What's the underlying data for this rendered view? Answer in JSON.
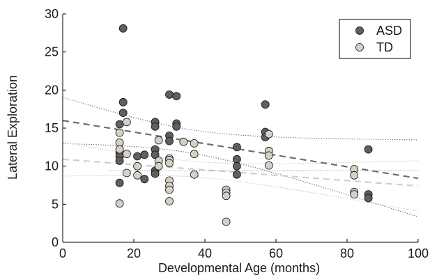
{
  "chart_data": {
    "type": "scatter",
    "xlabel": "Developmental Age (months)",
    "ylabel": "Lateral Exploration",
    "xlim": [
      0,
      100
    ],
    "ylim": [
      0,
      30
    ],
    "xticks": [
      0,
      20,
      40,
      60,
      80,
      100
    ],
    "yticks": [
      0,
      5,
      10,
      15,
      20,
      25,
      30
    ],
    "xtick_labels": [
      "0",
      "20",
      "40",
      "60",
      "80",
      "100"
    ],
    "ytick_labels": [
      "0",
      "5",
      "10",
      "15",
      "20",
      "25",
      "30"
    ],
    "grid": false,
    "legend_position": "top-right",
    "series": [
      {
        "name": "ASD",
        "color": "#5f5f5f",
        "points": [
          [
            17,
            28.1
          ],
          [
            17,
            18.4
          ],
          [
            17,
            17.0
          ],
          [
            16,
            15.5
          ],
          [
            16,
            11.8
          ],
          [
            16,
            11.3
          ],
          [
            16,
            10.7
          ],
          [
            16,
            7.8
          ],
          [
            21,
            11.3
          ],
          [
            23,
            11.5
          ],
          [
            23,
            8.3
          ],
          [
            26,
            15.8
          ],
          [
            26,
            15.2
          ],
          [
            26,
            12.2
          ],
          [
            26,
            11.5
          ],
          [
            26,
            9.4
          ],
          [
            26,
            9.0
          ],
          [
            30,
            19.4
          ],
          [
            30,
            14.0
          ],
          [
            30,
            13.3
          ],
          [
            32,
            19.2
          ],
          [
            32,
            15.6
          ],
          [
            32,
            15.2
          ],
          [
            49,
            12.5
          ],
          [
            49,
            10.9
          ],
          [
            49,
            10.0
          ],
          [
            49,
            8.9
          ],
          [
            57,
            18.1
          ],
          [
            57,
            14.5
          ],
          [
            57,
            13.8
          ],
          [
            86,
            12.2
          ],
          [
            86,
            6.3
          ],
          [
            86,
            5.8
          ]
        ],
        "fit": [
          16.0,
          8.4
        ]
      },
      {
        "name": "TD",
        "color": "#d6d1c4",
        "points": [
          [
            16,
            14.4
          ],
          [
            16,
            13.1
          ],
          [
            16,
            12.2
          ],
          [
            16,
            5.1
          ],
          [
            18,
            15.8
          ],
          [
            18,
            11.6
          ],
          [
            18,
            9.1
          ],
          [
            21,
            10.0
          ],
          [
            21,
            8.8
          ],
          [
            27,
            13.4
          ],
          [
            27,
            10.7
          ],
          [
            27,
            10.0
          ],
          [
            30,
            11.0
          ],
          [
            30,
            10.8
          ],
          [
            30,
            10.4
          ],
          [
            30,
            8.1
          ],
          [
            30,
            7.4
          ],
          [
            30,
            6.9
          ],
          [
            30,
            5.4
          ],
          [
            34,
            13.2
          ],
          [
            37,
            13.0
          ],
          [
            37,
            11.6
          ],
          [
            37,
            8.9
          ],
          [
            46,
            6.9
          ],
          [
            46,
            6.5
          ],
          [
            46,
            6.1
          ],
          [
            46,
            2.7
          ],
          [
            58,
            14.2
          ],
          [
            58,
            12.0
          ],
          [
            58,
            11.4
          ],
          [
            58,
            10.1
          ],
          [
            82,
            9.6
          ],
          [
            82,
            8.8
          ],
          [
            82,
            6.6
          ],
          [
            82,
            6.3
          ]
        ],
        "fit": [
          10.9,
          7.4
        ]
      }
    ]
  }
}
